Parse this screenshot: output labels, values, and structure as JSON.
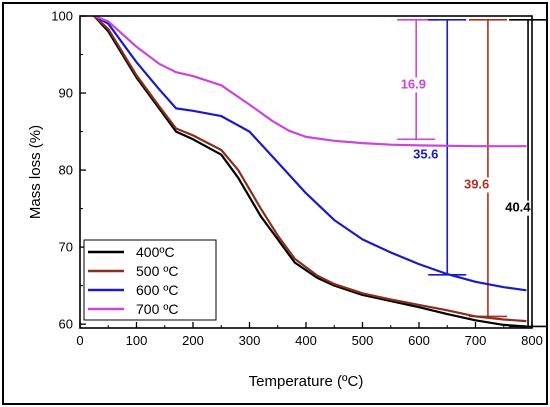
{
  "chart_data": {
    "type": "line",
    "xlabel": "Temperature (ºC)",
    "ylabel": "Mass loss (%)",
    "xlim": [
      0,
      800
    ],
    "ylim": [
      59.5,
      100
    ],
    "x_ticks": [
      0,
      100,
      200,
      300,
      400,
      500,
      600,
      700,
      800
    ],
    "y_ticks": [
      60,
      70,
      80,
      90,
      100
    ],
    "x_tick_labels": [
      "0",
      "100",
      "200",
      "300",
      "400",
      "500",
      "600",
      "700",
      "800"
    ],
    "y_tick_labels": [
      "60",
      "70",
      "80",
      "90",
      "100"
    ],
    "grid": false,
    "legend_position": "bottom-left",
    "series": [
      {
        "name": "400ºC",
        "color": "#000000",
        "points": [
          [
            25,
            100
          ],
          [
            50,
            98
          ],
          [
            100,
            92
          ],
          [
            140,
            88
          ],
          [
            170,
            85
          ],
          [
            200,
            84
          ],
          [
            250,
            82
          ],
          [
            280,
            79
          ],
          [
            320,
            74
          ],
          [
            350,
            71
          ],
          [
            380,
            68
          ],
          [
            420,
            66
          ],
          [
            450,
            65
          ],
          [
            500,
            63.8
          ],
          [
            550,
            63
          ],
          [
            600,
            62.2
          ],
          [
            650,
            61.3
          ],
          [
            700,
            60.5
          ],
          [
            750,
            59.9
          ],
          [
            790,
            59.7
          ]
        ]
      },
      {
        "name": "500 ºC",
        "color": "#8b2e1a",
        "points": [
          [
            25,
            100
          ],
          [
            50,
            98.3
          ],
          [
            100,
            92.3
          ],
          [
            140,
            88.3
          ],
          [
            170,
            85.4
          ],
          [
            200,
            84.5
          ],
          [
            250,
            82.6
          ],
          [
            280,
            80
          ],
          [
            320,
            75
          ],
          [
            350,
            71.5
          ],
          [
            380,
            68.5
          ],
          [
            420,
            66.3
          ],
          [
            450,
            65.2
          ],
          [
            500,
            64
          ],
          [
            550,
            63.2
          ],
          [
            600,
            62.5
          ],
          [
            650,
            61.8
          ],
          [
            700,
            61
          ],
          [
            750,
            60.6
          ],
          [
            790,
            60.4
          ]
        ]
      },
      {
        "name": "600 ºC",
        "color": "#1a1acc",
        "points": [
          [
            25,
            100
          ],
          [
            50,
            99
          ],
          [
            100,
            94
          ],
          [
            140,
            90.5
          ],
          [
            170,
            88
          ],
          [
            200,
            87.7
          ],
          [
            250,
            87
          ],
          [
            300,
            85
          ],
          [
            350,
            81
          ],
          [
            400,
            77
          ],
          [
            450,
            73.5
          ],
          [
            500,
            71
          ],
          [
            550,
            69.3
          ],
          [
            600,
            67.8
          ],
          [
            650,
            66.5
          ],
          [
            700,
            65.5
          ],
          [
            750,
            64.8
          ],
          [
            790,
            64.4
          ]
        ]
      },
      {
        "name": "700 ºC",
        "color": "#cc44dd",
        "points": [
          [
            25,
            100
          ],
          [
            50,
            99.3
          ],
          [
            100,
            96
          ],
          [
            140,
            93.8
          ],
          [
            170,
            92.7
          ],
          [
            200,
            92.2
          ],
          [
            250,
            91
          ],
          [
            300,
            88.5
          ],
          [
            340,
            86.4
          ],
          [
            370,
            85.1
          ],
          [
            400,
            84.3
          ],
          [
            450,
            83.8
          ],
          [
            500,
            83.5
          ],
          [
            550,
            83.3
          ],
          [
            600,
            83.2
          ],
          [
            700,
            83.1
          ],
          [
            790,
            83.1
          ]
        ]
      }
    ],
    "annotations": [
      {
        "label": "16.9",
        "x": 595,
        "y_top": 99.5,
        "y_bottom": 84,
        "color": "#cc44dd",
        "text_x": 590,
        "text_y": 90.6
      },
      {
        "label": "35.6",
        "x": 650,
        "y_top": 99.5,
        "y_bottom": 66.4,
        "color": "#1a1acc",
        "text_x": 612,
        "text_y": 81.5
      },
      {
        "label": "39.6",
        "x": 722,
        "y_top": 99.5,
        "y_bottom": 61,
        "color": "#b03020",
        "text_x": 702,
        "text_y": 77.6
      },
      {
        "label": "40.4",
        "x": 793,
        "y_top": 99.5,
        "y_bottom": 59.7,
        "color": "#000000",
        "text_x": 775,
        "text_y": 74.6
      }
    ]
  }
}
